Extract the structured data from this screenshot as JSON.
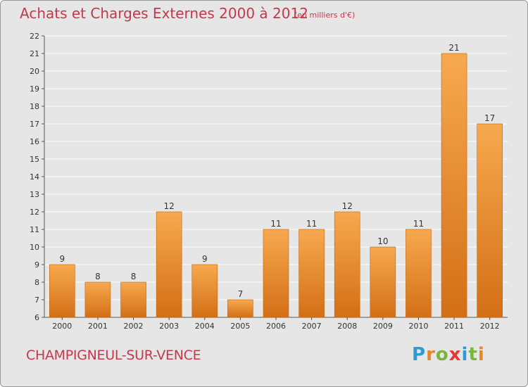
{
  "header": {
    "title": "Achats et Charges Externes 2000 à 2012",
    "subtitle": "(en milliers d'€)"
  },
  "footer": {
    "place": "CHAMPIGNEUL-SUR-VENCE",
    "logo": "Proxiti"
  },
  "colors": {
    "title": "#c4384b",
    "bar_light": "#f7a94f",
    "bar_dark": "#d36f16",
    "plot_bg": "#e6e6e6",
    "grid": "#ffffff",
    "logo_letters": [
      "#2e9ad6",
      "#e8862a",
      "#7cb342",
      "#e53935",
      "#2e9ad6",
      "#7cb342",
      "#e8862a"
    ]
  },
  "chart_data": {
    "type": "bar",
    "title": "Achats et Charges Externes 2000 à 2012",
    "subtitle": "(en milliers d'€)",
    "xlabel": "",
    "ylabel": "",
    "categories": [
      "2000",
      "2001",
      "2002",
      "2003",
      "2004",
      "2005",
      "2006",
      "2007",
      "2008",
      "2009",
      "2010",
      "2011",
      "2012"
    ],
    "values": [
      9,
      8,
      8,
      12,
      9,
      7,
      11,
      11,
      12,
      10,
      11,
      21,
      17
    ],
    "ylim": [
      6,
      22
    ],
    "yticks": [
      6,
      7,
      8,
      9,
      10,
      11,
      12,
      13,
      14,
      15,
      16,
      17,
      18,
      19,
      20,
      21,
      22
    ],
    "grid": true,
    "legend": "none",
    "data_labels": true
  }
}
